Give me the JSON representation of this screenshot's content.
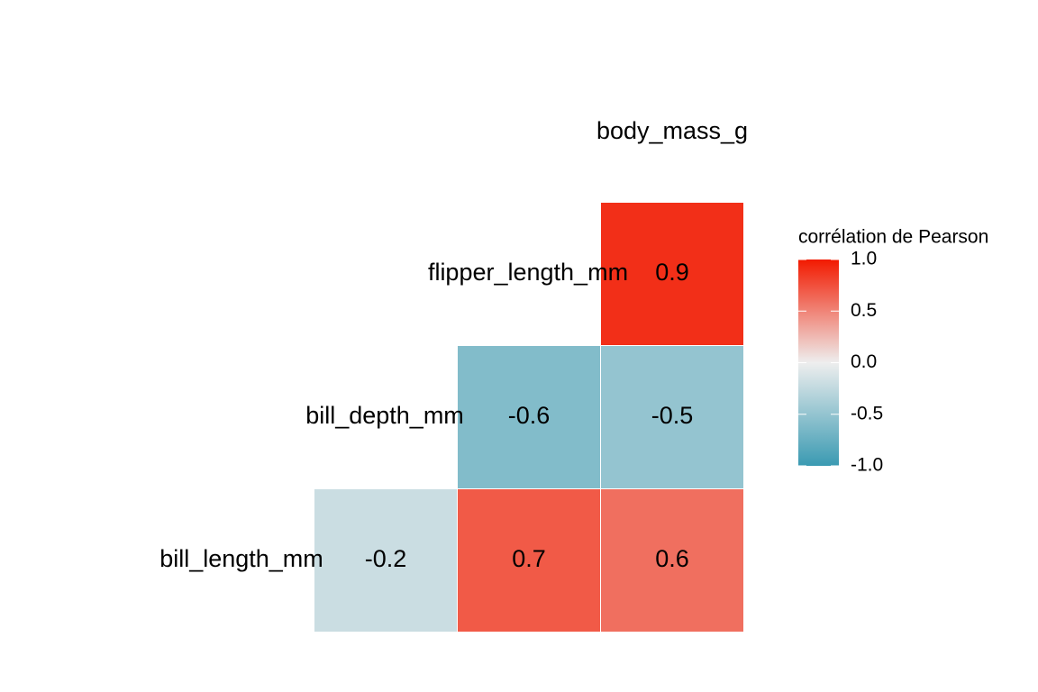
{
  "chart_data": {
    "type": "heatmap",
    "variables": [
      "bill_length_mm",
      "bill_depth_mm",
      "flipper_length_mm",
      "body_mass_g"
    ],
    "values": [
      [
        -0.2,
        0.7,
        0.6
      ],
      [
        -0.6,
        -0.5
      ],
      [
        0.9
      ]
    ],
    "legend_title": "corrélation de Pearson",
    "colors": {
      "low": "#3a9ab2",
      "mid": "#eeeeee",
      "high": "#f21a00"
    },
    "clim": [
      -1,
      1
    ],
    "cticks": [
      {
        "value": -1,
        "label": "-1.0"
      },
      -0.5,
      {
        "value": 0,
        "label": "0.0"
      },
      0.5,
      {
        "value": 1,
        "label": "1.0"
      }
    ]
  }
}
